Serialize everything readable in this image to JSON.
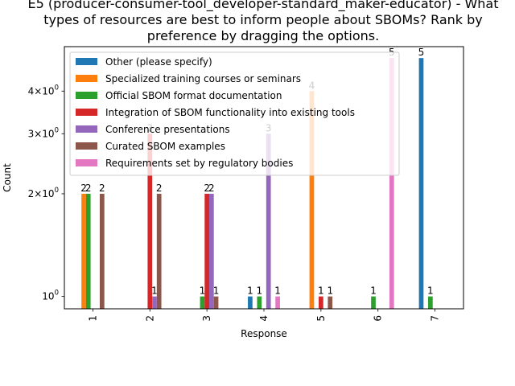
{
  "chart_data": {
    "type": "bar",
    "title_lines": [
      "E5 (producer-consumer-tool_developer-standard_maker-educator) - What",
      "types of resources are best to inform people about SBOMs? Rank by",
      "preference by dragging the options."
    ],
    "xlabel": "Response",
    "ylabel": "Count",
    "yscale": "log",
    "ylim": [
      0.92,
      5.4
    ],
    "yticks": [
      {
        "value": 1,
        "base": "10",
        "exp": "0",
        "mant": ""
      },
      {
        "value": 2,
        "base": "10",
        "exp": "0",
        "mant": "2×"
      },
      {
        "value": 3,
        "base": "10",
        "exp": "0",
        "mant": "3×"
      },
      {
        "value": 4,
        "base": "10",
        "exp": "0",
        "mant": "4×"
      }
    ],
    "categories": [
      "1",
      "2",
      "3",
      "4",
      "5",
      "6",
      "7"
    ],
    "legend_position": "upper-left",
    "series": [
      {
        "name": "Other (please specify)",
        "color": "#1f77b4",
        "values": [
          null,
          null,
          null,
          1,
          null,
          null,
          5
        ]
      },
      {
        "name": "Specialized training courses or seminars",
        "color": "#ff7f0e",
        "values": [
          2,
          null,
          null,
          null,
          4,
          null,
          null
        ]
      },
      {
        "name": "Official SBOM format documentation",
        "color": "#2ca02c",
        "values": [
          2,
          null,
          1,
          1,
          null,
          1,
          1
        ]
      },
      {
        "name": "Integration of SBOM functionality into existing tools",
        "color": "#d62728",
        "values": [
          null,
          3,
          2,
          null,
          1,
          null,
          null
        ]
      },
      {
        "name": "Conference presentations",
        "color": "#9467bd",
        "values": [
          null,
          1,
          2,
          3,
          null,
          null,
          null
        ]
      },
      {
        "name": "Curated SBOM examples",
        "color": "#8c564b",
        "values": [
          2,
          2,
          1,
          null,
          1,
          null,
          null
        ]
      },
      {
        "name": "Requirements set by regulatory bodies",
        "color": "#e377c2",
        "values": [
          null,
          null,
          null,
          1,
          null,
          5,
          null
        ]
      }
    ]
  }
}
